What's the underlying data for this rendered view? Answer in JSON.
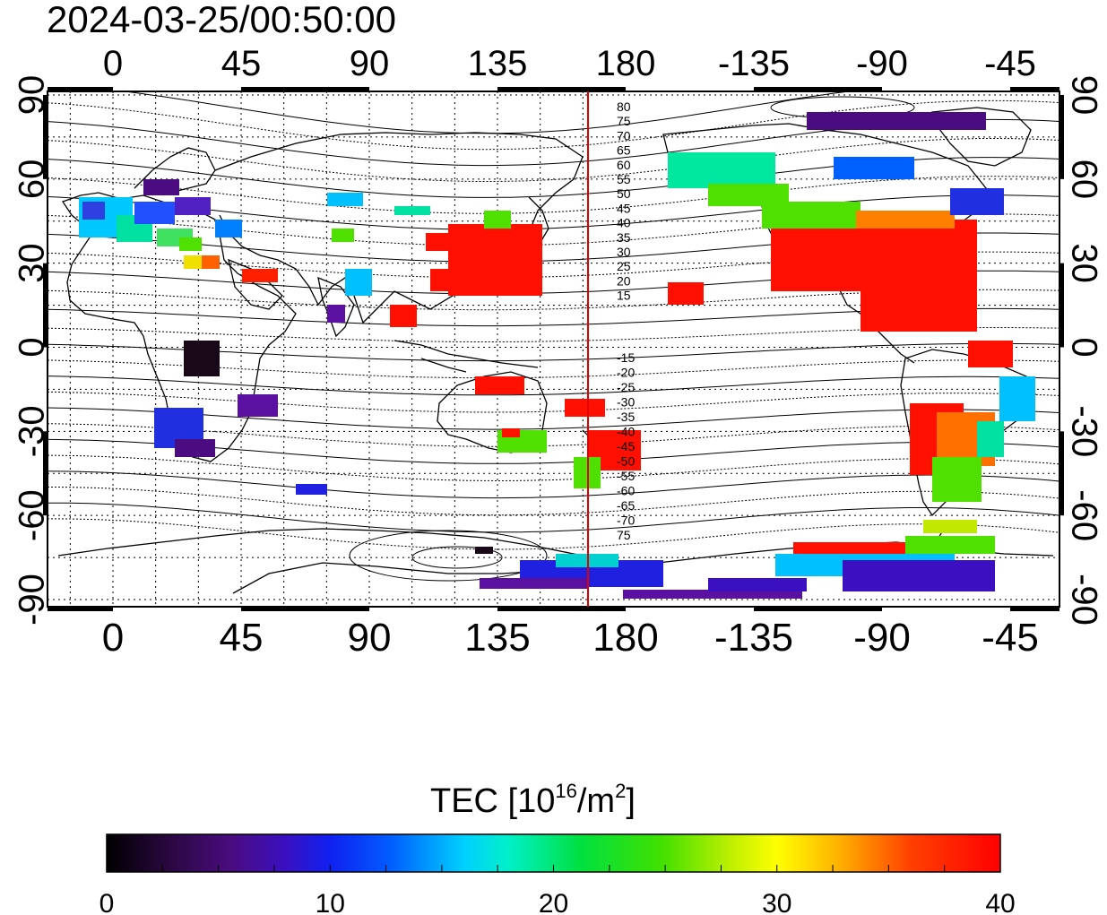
{
  "timestamp": "2024-03-25/00:50:00",
  "map": {
    "top_lon_ticks": [
      "0",
      "45",
      "90",
      "135",
      "180",
      "-135",
      "-90",
      "-45"
    ],
    "bottom_lon_ticks": [
      "0",
      "45",
      "90",
      "135",
      "180",
      "-135",
      "-90",
      "-45"
    ],
    "left_lat_ticks": [
      "90",
      "60",
      "30",
      "0",
      "-30",
      "-60",
      "-90"
    ],
    "right_lat_ticks": [
      "90",
      "60",
      "30",
      "0",
      "-30",
      "-60",
      "-90"
    ],
    "contour_labels_north": [
      "80",
      "75",
      "70",
      "65",
      "60",
      "55",
      "50",
      "45",
      "40",
      "35",
      "30",
      "25",
      "20",
      "15"
    ],
    "contour_labels_south": [
      "-15",
      "-20",
      "-25",
      "-30",
      "-35",
      "-40",
      "-45",
      "-50",
      "-55",
      "-60",
      "-65",
      "-70",
      "75"
    ],
    "meridian_line_color": "#e00000"
  },
  "colorbar": {
    "title_main": "TEC  [10",
    "title_sup": "16",
    "title_mid": "/m",
    "title_sup2": "2",
    "title_end": "]",
    "tick_labels": [
      "0",
      "10",
      "20",
      "30",
      "40"
    ],
    "min": 0,
    "max": 40,
    "colors": [
      "#000000",
      "#3a0a5a",
      "#5a10a0",
      "#2020e0",
      "#0060ff",
      "#00c0ff",
      "#00e8c0",
      "#00e050",
      "#50e000",
      "#c0e800",
      "#ffff00",
      "#ffb000",
      "#ff5000",
      "#ff1000",
      "#ff0000"
    ]
  }
}
